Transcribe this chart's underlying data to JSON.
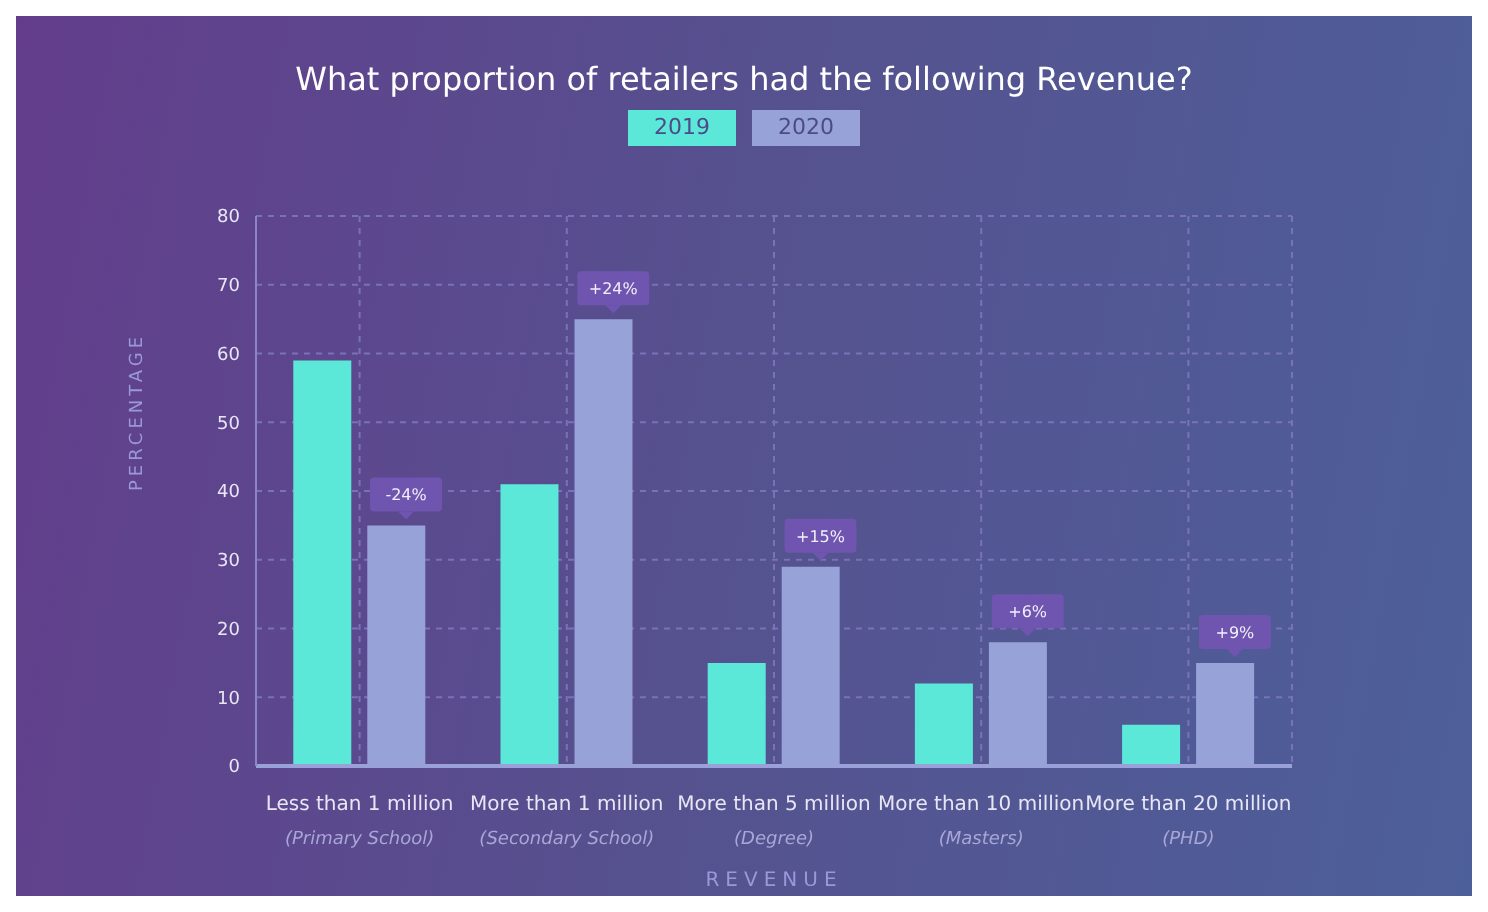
{
  "chart_data": {
    "type": "bar",
    "title": "What proportion of retailers had the following Revenue?",
    "xlabel": "REVENUE",
    "ylabel": "PERCENTAGE",
    "categories": [
      "Less than 1 million\n(Primary School)",
      "More than 1 million\n(Secondary School)",
      "More than 5 million\n(Degree)",
      "More than 10 million\n(Masters)",
      "More than 20 million\n(PHD)"
    ],
    "series": [
      {
        "name": "2019",
        "color": "#5ce8d8",
        "values": [
          59,
          41,
          15,
          12,
          6
        ]
      },
      {
        "name": "2020",
        "color": "#97a3d8",
        "values": [
          35,
          65,
          29,
          18,
          15
        ]
      }
    ],
    "annotations": [
      {
        "text": "-24%",
        "x": "Less than 1 million\n(Primary School)",
        "y": 35
      },
      {
        "text": "+24%",
        "x": "More than 1 million\n(Secondary School)",
        "y": 65
      },
      {
        "text": "+15%",
        "x": "More than 5 million\n(Degree)",
        "y": 29
      },
      {
        "text": "+6%",
        "x": "More than 10 million\n(Masters)",
        "y": 18
      },
      {
        "text": "+9%",
        "x": "More than 20 million\n(PHD)",
        "y": 15
      }
    ],
    "ylim": [
      0,
      80
    ],
    "yticks": [
      0,
      10,
      20,
      30,
      40,
      50,
      60,
      70,
      80
    ],
    "grid": true,
    "legend": "top"
  }
}
